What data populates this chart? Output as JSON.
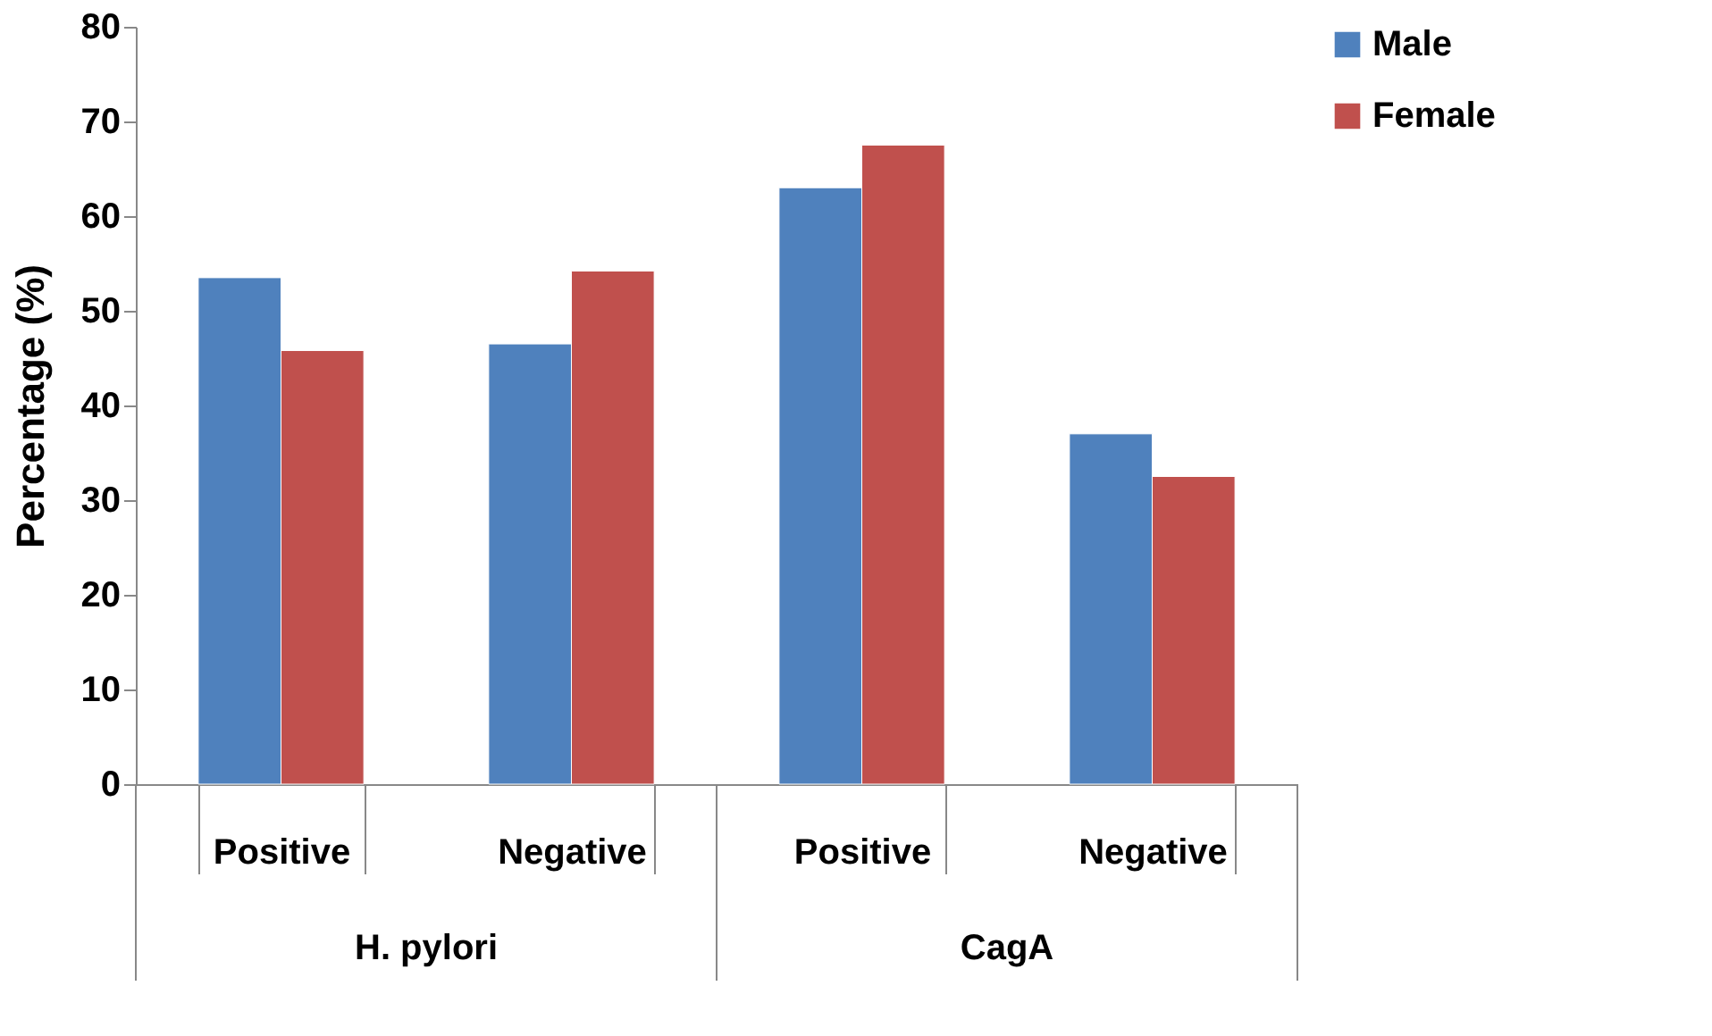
{
  "chart_data": {
    "type": "bar",
    "ylabel": "Percentage (%)",
    "categories": [
      "Positive",
      "Negative",
      "Positive",
      "Negative"
    ],
    "series": [
      {
        "name": "Male",
        "color": "#4f81bd",
        "values": [
          53.5,
          46.5,
          63,
          37
        ]
      },
      {
        "name": "Female",
        "color": "#c0504d",
        "values": [
          45.8,
          54.2,
          67.5,
          32.5
        ]
      }
    ],
    "ylim": [
      0,
      80
    ],
    "yticks": [
      0,
      10,
      20,
      30,
      40,
      50,
      60,
      70,
      80
    ],
    "grid": false,
    "legend": "right",
    "annotations": [
      "H. pylori",
      "CagA"
    ]
  }
}
